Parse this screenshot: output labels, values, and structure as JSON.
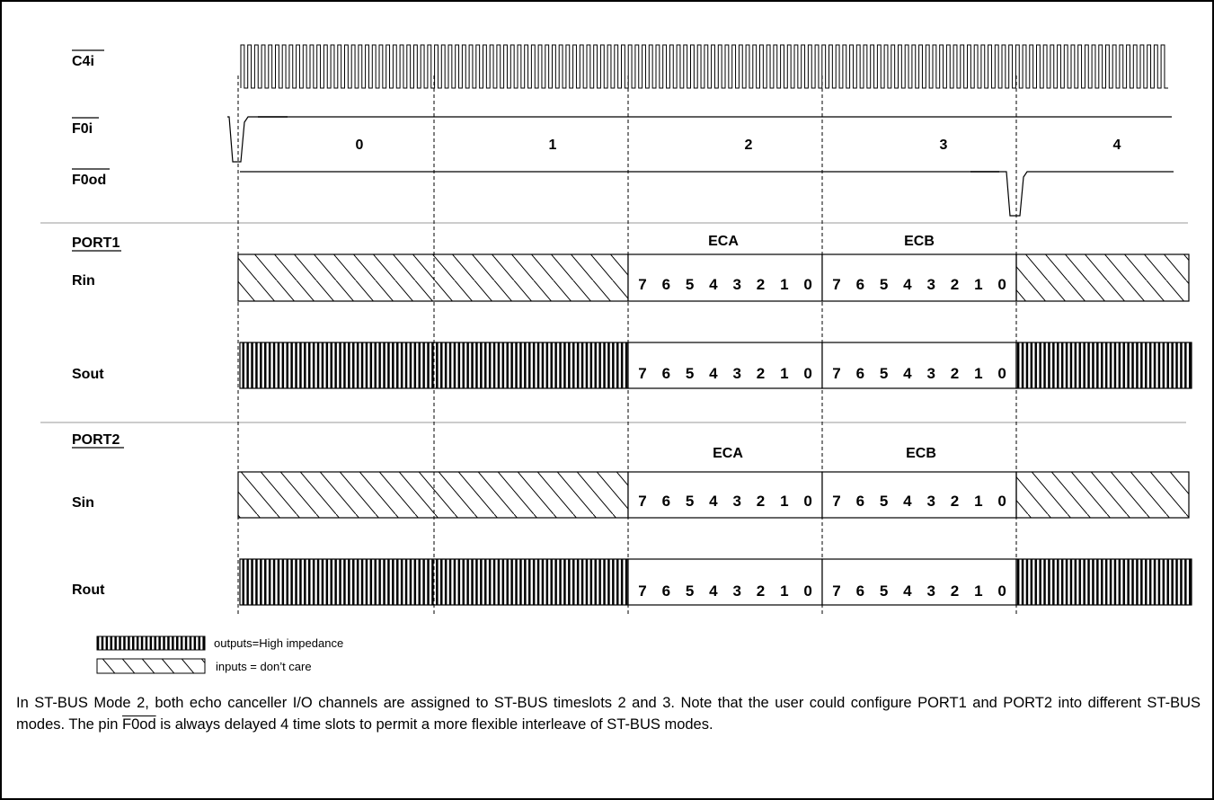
{
  "signals": {
    "c4i": "C4i",
    "f0i": "F0i",
    "f0od": "F0od",
    "port1": "PORT1",
    "rin": "Rin",
    "sout": "Sout",
    "port2": "PORT2",
    "sin": "Sin",
    "rout": "Rout"
  },
  "timeslots": [
    "0",
    "1",
    "2",
    "3",
    "4"
  ],
  "channels": [
    "ECA",
    "ECB"
  ],
  "bits": [
    "7",
    "6",
    "5",
    "4",
    "3",
    "2",
    "1",
    "0"
  ],
  "legend": {
    "outputs": "outputs=High impedance",
    "inputs": "inputs = don’t care"
  },
  "caption": {
    "part1": "In ST-BUS Mode 2, both echo canceller I/O channels are assigned to ST-BUS timeslots 2 and 3. Note that the user could configure PORT1 and PORT2 into different ST-BUS modes. The pin ",
    "pin": "F0od",
    "part2": " is always delayed 4 time slots to permit a more flexible interleave of ST-BUS modes."
  }
}
